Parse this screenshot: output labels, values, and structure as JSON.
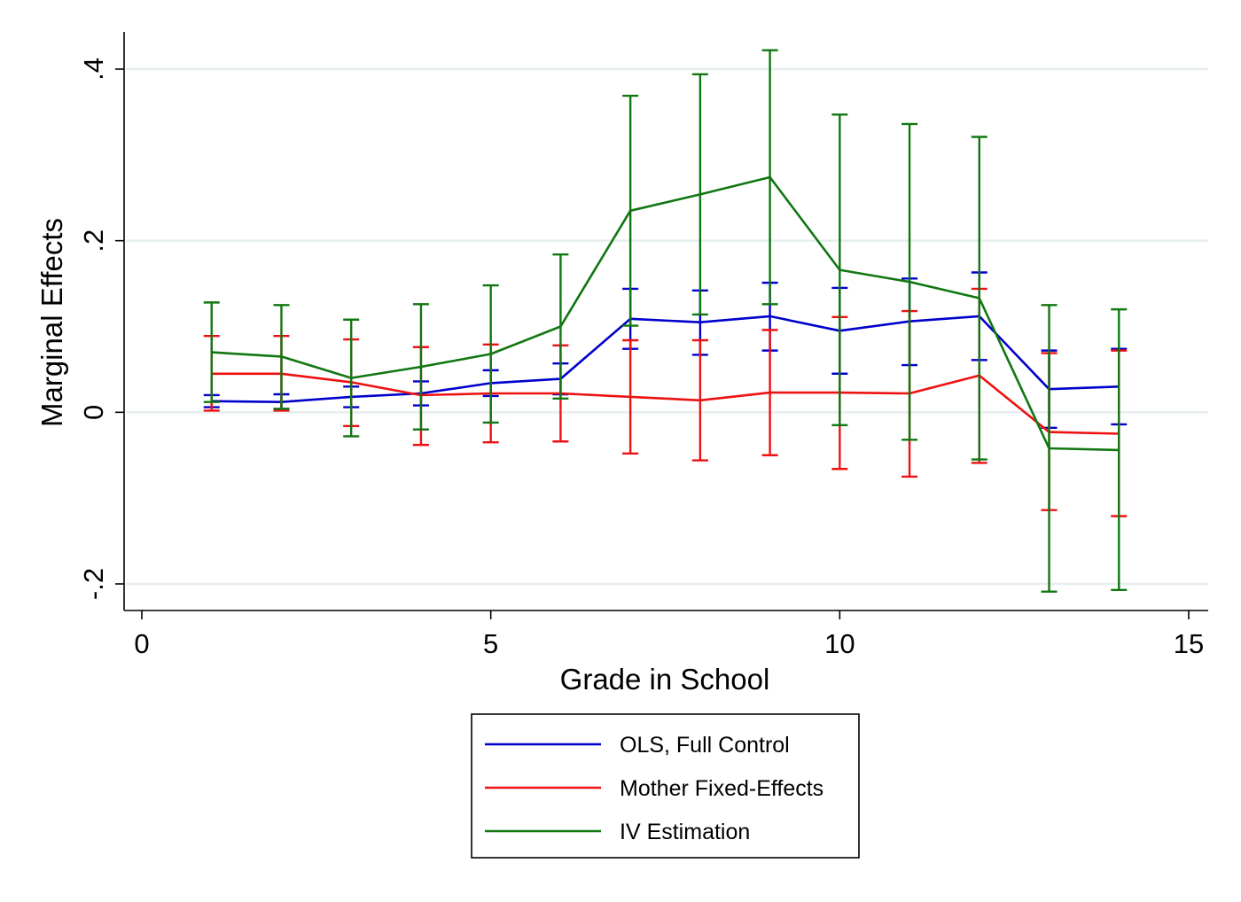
{
  "chart_data": {
    "type": "line",
    "xlabel": "Grade in School",
    "ylabel": "Marginal Effects",
    "xlim": [
      0,
      15
    ],
    "ylim": [
      -0.2,
      0.4
    ],
    "x_ticks": [
      {
        "value": 0,
        "label": "0"
      },
      {
        "value": 5,
        "label": "5"
      },
      {
        "value": 10,
        "label": "10"
      },
      {
        "value": 15,
        "label": "15"
      }
    ],
    "y_ticks": [
      {
        "value": -0.2,
        "label": "-.2"
      },
      {
        "value": 0,
        "label": "0"
      },
      {
        "value": 0.2,
        "label": ".2"
      },
      {
        "value": 0.4,
        "label": ".4"
      }
    ],
    "grid": true,
    "legend_position": "bottom",
    "x": [
      1,
      2,
      3,
      4,
      5,
      6,
      7,
      8,
      9,
      10,
      11,
      12,
      13,
      14
    ],
    "series": [
      {
        "name": "OLS, Full Control",
        "color": "#0000cc",
        "values": [
          0.013,
          0.012,
          0.018,
          0.022,
          0.034,
          0.039,
          0.109,
          0.105,
          0.112,
          0.095,
          0.106,
          0.112,
          0.027,
          0.03
        ],
        "lower": [
          0.006,
          0.004,
          0.006,
          0.008,
          0.019,
          0.021,
          0.074,
          0.067,
          0.072,
          0.045,
          0.055,
          0.061,
          -0.018,
          -0.014
        ],
        "upper": [
          0.02,
          0.021,
          0.03,
          0.036,
          0.049,
          0.057,
          0.144,
          0.142,
          0.151,
          0.145,
          0.156,
          0.163,
          0.072,
          0.074
        ]
      },
      {
        "name": "Mother Fixed-Effects",
        "color": "#ee1111",
        "values": [
          0.045,
          0.045,
          0.035,
          0.02,
          0.022,
          0.022,
          0.018,
          0.014,
          0.023,
          0.023,
          0.022,
          0.043,
          -0.023,
          -0.025
        ],
        "lower": [
          0.002,
          0.002,
          -0.016,
          -0.038,
          -0.035,
          -0.034,
          -0.048,
          -0.056,
          -0.05,
          -0.066,
          -0.075,
          -0.059,
          -0.114,
          -0.121
        ],
        "upper": [
          0.089,
          0.089,
          0.085,
          0.076,
          0.079,
          0.078,
          0.084,
          0.084,
          0.096,
          0.111,
          0.118,
          0.144,
          0.069,
          0.072
        ]
      },
      {
        "name": "IV Estimation",
        "color": "#117711",
        "values": [
          0.07,
          0.065,
          0.04,
          0.053,
          0.068,
          0.1,
          0.235,
          0.254,
          0.274,
          0.166,
          0.152,
          0.133,
          -0.042,
          -0.044
        ],
        "lower": [
          0.012,
          0.004,
          -0.028,
          -0.02,
          -0.012,
          0.016,
          0.101,
          0.114,
          0.126,
          -0.015,
          -0.032,
          -0.055,
          -0.209,
          -0.207
        ],
        "upper": [
          0.128,
          0.125,
          0.108,
          0.126,
          0.148,
          0.184,
          0.369,
          0.394,
          0.422,
          0.347,
          0.336,
          0.321,
          0.125,
          0.12
        ]
      }
    ]
  }
}
